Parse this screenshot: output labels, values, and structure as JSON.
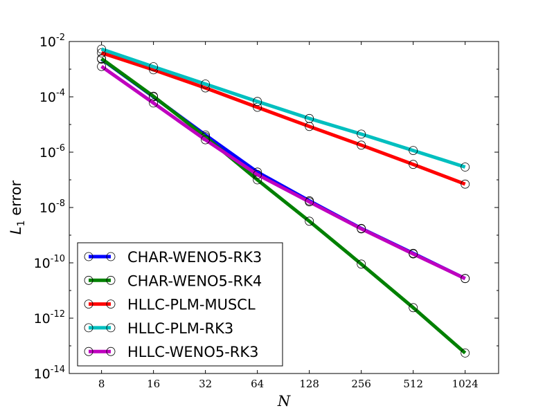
{
  "chart_data": {
    "type": "line",
    "x_scale": "log2",
    "y_scale": "log10",
    "x": [
      8,
      16,
      32,
      64,
      128,
      256,
      512,
      1024
    ],
    "xticks": [
      "8",
      "16",
      "32",
      "64",
      "128",
      "256",
      "512",
      "1024"
    ],
    "xlim": [
      5.2,
      1600
    ],
    "ylim": [
      1e-14,
      0.01
    ],
    "yticks": [
      {
        "base": "10",
        "exp": "-14",
        "value": 1e-14
      },
      {
        "base": "10",
        "exp": "-12",
        "value": 1e-12
      },
      {
        "base": "10",
        "exp": "-10",
        "value": 1e-10
      },
      {
        "base": "10",
        "exp": "-8",
        "value": 1e-08
      },
      {
        "base": "10",
        "exp": "-6",
        "value": 1e-06
      },
      {
        "base": "10",
        "exp": "-4",
        "value": 0.0001
      },
      {
        "base": "10",
        "exp": "-2",
        "value": 0.01
      }
    ],
    "xlabel": "N",
    "ylabel_main": "L",
    "ylabel_sub": "1",
    "ylabel_rest": " error",
    "grid": false,
    "legend_position": "lower-left",
    "marker": "open-circle",
    "series": [
      {
        "name": "CHAR-WENO5-RK3",
        "color": "#0000ff",
        "values": [
          0.0023,
          0.0001,
          4.2e-06,
          1.9e-07,
          1.75e-08,
          1.75e-09,
          2.2e-10,
          2.7e-11
        ]
      },
      {
        "name": "CHAR-WENO5-RK4",
        "color": "#008000",
        "values": [
          0.0024,
          0.000105,
          3.6e-06,
          1e-07,
          3.2e-09,
          9e-11,
          2.4e-12,
          5.5e-14
        ]
      },
      {
        "name": "HLLC-PLM-MUSCL",
        "color": "#ff0000",
        "values": [
          0.0039,
          0.00095,
          0.00021,
          4.2e-05,
          8.5e-06,
          1.8e-06,
          3.6e-07,
          7e-08
        ]
      },
      {
        "name": "HLLC-PLM-RK3",
        "color": "#00bfbf",
        "values": [
          0.0053,
          0.00122,
          0.00029,
          6.8e-05,
          1.65e-05,
          4.5e-06,
          1.15e-06,
          2.9e-07
        ]
      },
      {
        "name": "HLLC-WENO5-RK3",
        "color": "#bf00bf",
        "values": [
          0.00125,
          6e-05,
          2.8e-06,
          1.55e-07,
          1.6e-08,
          1.7e-09,
          2.1e-10,
          2.7e-11
        ]
      }
    ]
  }
}
